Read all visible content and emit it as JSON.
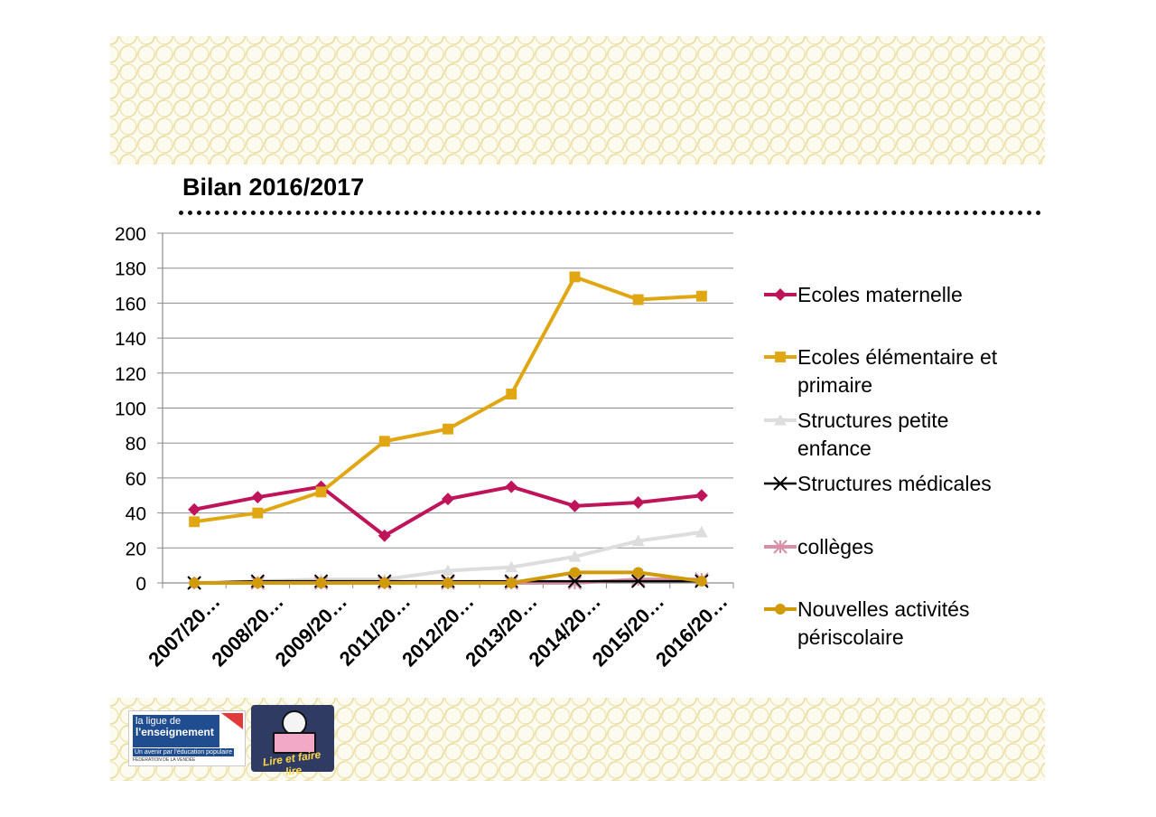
{
  "title": "Bilan 2016/2017",
  "logos": {
    "ligue": {
      "line1": "la ligue de",
      "line2": "l'enseignement",
      "tagline": "Un avenir par l'éducation populaire",
      "footer": "FÉDÉRATION DE LA VENDÉE"
    },
    "lire": {
      "text": "Lire et faire lire"
    }
  },
  "chart_data": {
    "type": "line",
    "title": "",
    "xlabel": "",
    "ylabel": "",
    "ylim": [
      0,
      200
    ],
    "yticks": [
      0,
      20,
      40,
      60,
      80,
      100,
      120,
      140,
      160,
      180,
      200
    ],
    "grid": true,
    "legend_position": "right",
    "categories": [
      "2007/20…",
      "2008/20…",
      "2009/20…",
      "2011/20…",
      "2012/20…",
      "2013/20…",
      "2014/20…",
      "2015/20…",
      "2016/20…"
    ],
    "series": [
      {
        "name": "Ecoles maternelle",
        "color": "#c0145a",
        "marker": "diamond",
        "values": [
          42,
          49,
          55,
          27,
          48,
          55,
          44,
          46,
          50
        ]
      },
      {
        "name": "Ecoles élémentaire et primaire",
        "color": "#e0a712",
        "marker": "square",
        "values": [
          35,
          40,
          52,
          81,
          88,
          108,
          175,
          162,
          164
        ]
      },
      {
        "name": "Structures petite enfance",
        "color": "#dddddd",
        "marker": "triangle",
        "values": [
          0,
          1,
          2,
          2,
          7,
          9,
          15,
          24,
          29
        ]
      },
      {
        "name": "Structures médicales",
        "color": "#000000",
        "marker": "x",
        "values": [
          0,
          1,
          1,
          1,
          1,
          1,
          1,
          1,
          1
        ]
      },
      {
        "name": "collèges",
        "color": "#d98fa6",
        "marker": "star",
        "values": [
          0,
          0,
          0,
          0,
          0,
          0,
          0,
          2,
          2
        ]
      },
      {
        "name": "Nouvelles activités périscolaire",
        "color": "#d09a0a",
        "marker": "circle",
        "values": [
          0,
          0,
          0,
          0,
          0,
          0,
          6,
          6,
          1
        ]
      }
    ]
  }
}
